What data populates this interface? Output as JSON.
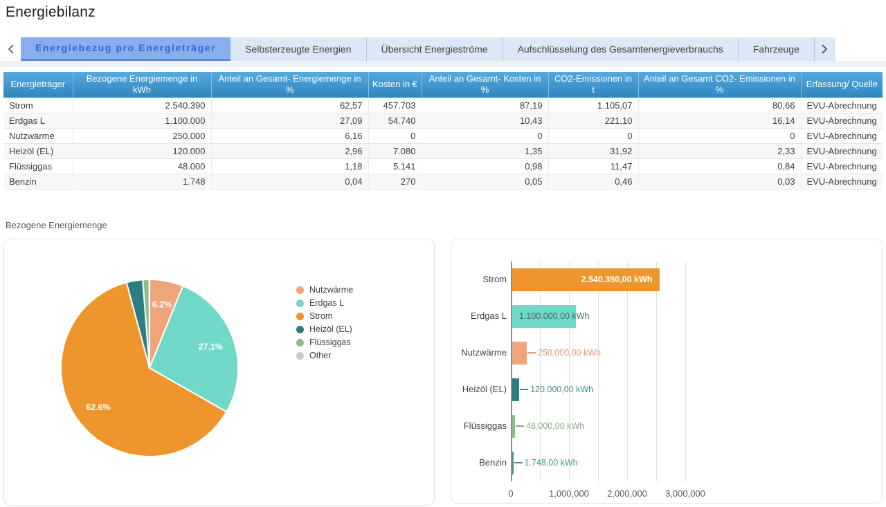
{
  "page": {
    "title": "Energiebilanz"
  },
  "colors": {
    "accent_blue": "#2a63dd",
    "active_tab_bg": "#8aaeec",
    "inactive_tab_bg": "#dce8f7",
    "table_header_top": "#54abe0",
    "table_header_bottom": "#3185bd",
    "row_alt": "#f7f7f7"
  },
  "tabs": {
    "items": [
      {
        "label": "Energiebezug pro Energieträger",
        "active": true
      },
      {
        "label": "Selbsterzeugte Energien",
        "active": false
      },
      {
        "label": "Übersicht Energieströme",
        "active": false
      },
      {
        "label": "Aufschlüsselung des Gesamtenergieverbrauchs",
        "active": false
      },
      {
        "label": "Fahrzeuge",
        "active": false
      }
    ]
  },
  "table": {
    "columns": [
      "Energieträger",
      "Bezogene Energiemenge in kWh",
      "Anteil an Gesamt- Energiemenge in %",
      "Kosten in €",
      "Anteil an Gesamt- Kosten in %",
      "CO2-Emissionen in t",
      "Anteil an Gesamt CO2- Emissionen in %",
      "Erfassung/ Quelle"
    ],
    "rows": [
      [
        "Strom",
        "2.540.390",
        "62,57",
        "457.703",
        "87,19",
        "1.105,07",
        "80,66",
        "EVU-Abrechnung"
      ],
      [
        "Erdgas L",
        "1.100.000",
        "27,09",
        "54.740",
        "10,43",
        "221,10",
        "16,14",
        "EVU-Abrechnung"
      ],
      [
        "Nutzwärme",
        "250.000",
        "6,16",
        "0",
        "0",
        "0",
        "0",
        "EVU-Abrechnung"
      ],
      [
        "Heizöl (EL)",
        "120.000",
        "2,96",
        "7.080",
        "1,35",
        "31,92",
        "2,33",
        "EVU-Abrechnung"
      ],
      [
        "Flüssiggas",
        "48.000",
        "1,18",
        "5.141",
        "0,98",
        "11,47",
        "0,84",
        "EVU-Abrechnung"
      ],
      [
        "Benzin",
        "1.748",
        "0,04",
        "270",
        "0,05",
        "0,46",
        "0,03",
        "EVU-Abrechnung"
      ]
    ]
  },
  "section": {
    "label": "Bezogene Energiemenge"
  },
  "chart_data": [
    {
      "type": "pie",
      "title": "Bezogene Energiemenge",
      "direction": "clockwise",
      "start_angle_deg": 0,
      "legend_position": "right",
      "slices": [
        {
          "name": "Nutzwärme",
          "value": 6.16,
          "display_label": "6.2%",
          "color": "#f0a47c"
        },
        {
          "name": "Erdgas L",
          "value": 27.09,
          "display_label": "27.1%",
          "color": "#6fd8c6"
        },
        {
          "name": "Strom",
          "value": 62.57,
          "display_label": "62.6%",
          "color": "#ee962d"
        },
        {
          "name": "Heizöl (EL)",
          "value": 2.96,
          "display_label": "",
          "color": "#2c7e80"
        },
        {
          "name": "Flüssiggas",
          "value": 1.18,
          "display_label": "",
          "color": "#8cbe8b"
        },
        {
          "name": "Other",
          "value": 0.04,
          "display_label": "",
          "color": "#c9c9c9"
        }
      ]
    },
    {
      "type": "bar",
      "orientation": "horizontal",
      "unit": "kWh",
      "categories": [
        "Strom",
        "Erdgas L",
        "Nutzwärme",
        "Heizöl (EL)",
        "Flüssiggas",
        "Benzin"
      ],
      "values": [
        2540390,
        1100000,
        250000,
        120000,
        48000,
        1748
      ],
      "value_labels": [
        "2.540.390,00 kWh",
        "1.100.000,00 kWh",
        "250.000,00 kWh",
        "120.000,00 kWh",
        "48.000,00 kWh",
        "1.748,00 kWh"
      ],
      "bar_colors": [
        "#ee962d",
        "#6fd8c6",
        "#f0a47c",
        "#2c7e80",
        "#8cbe8b",
        "#4e8f92"
      ],
      "label_colors": [
        "#ffffff",
        "#4a6763",
        "#e09a76",
        "#3f8c8d",
        "#83ad82",
        "#4b9193"
      ],
      "label_placement": [
        "inside-end",
        "inside-start",
        "outside",
        "outside",
        "outside",
        "outside"
      ],
      "xlim": [
        0,
        3500000
      ],
      "grid_step": 500000,
      "grid_max": 3000000,
      "grid": true,
      "x_ticks": [
        {
          "value": 0,
          "label": "0"
        },
        {
          "value": 1000000,
          "label": "1,000,000"
        },
        {
          "value": 2000000,
          "label": "2,000,000"
        },
        {
          "value": 3000000,
          "label": "3,000,000"
        }
      ]
    }
  ]
}
